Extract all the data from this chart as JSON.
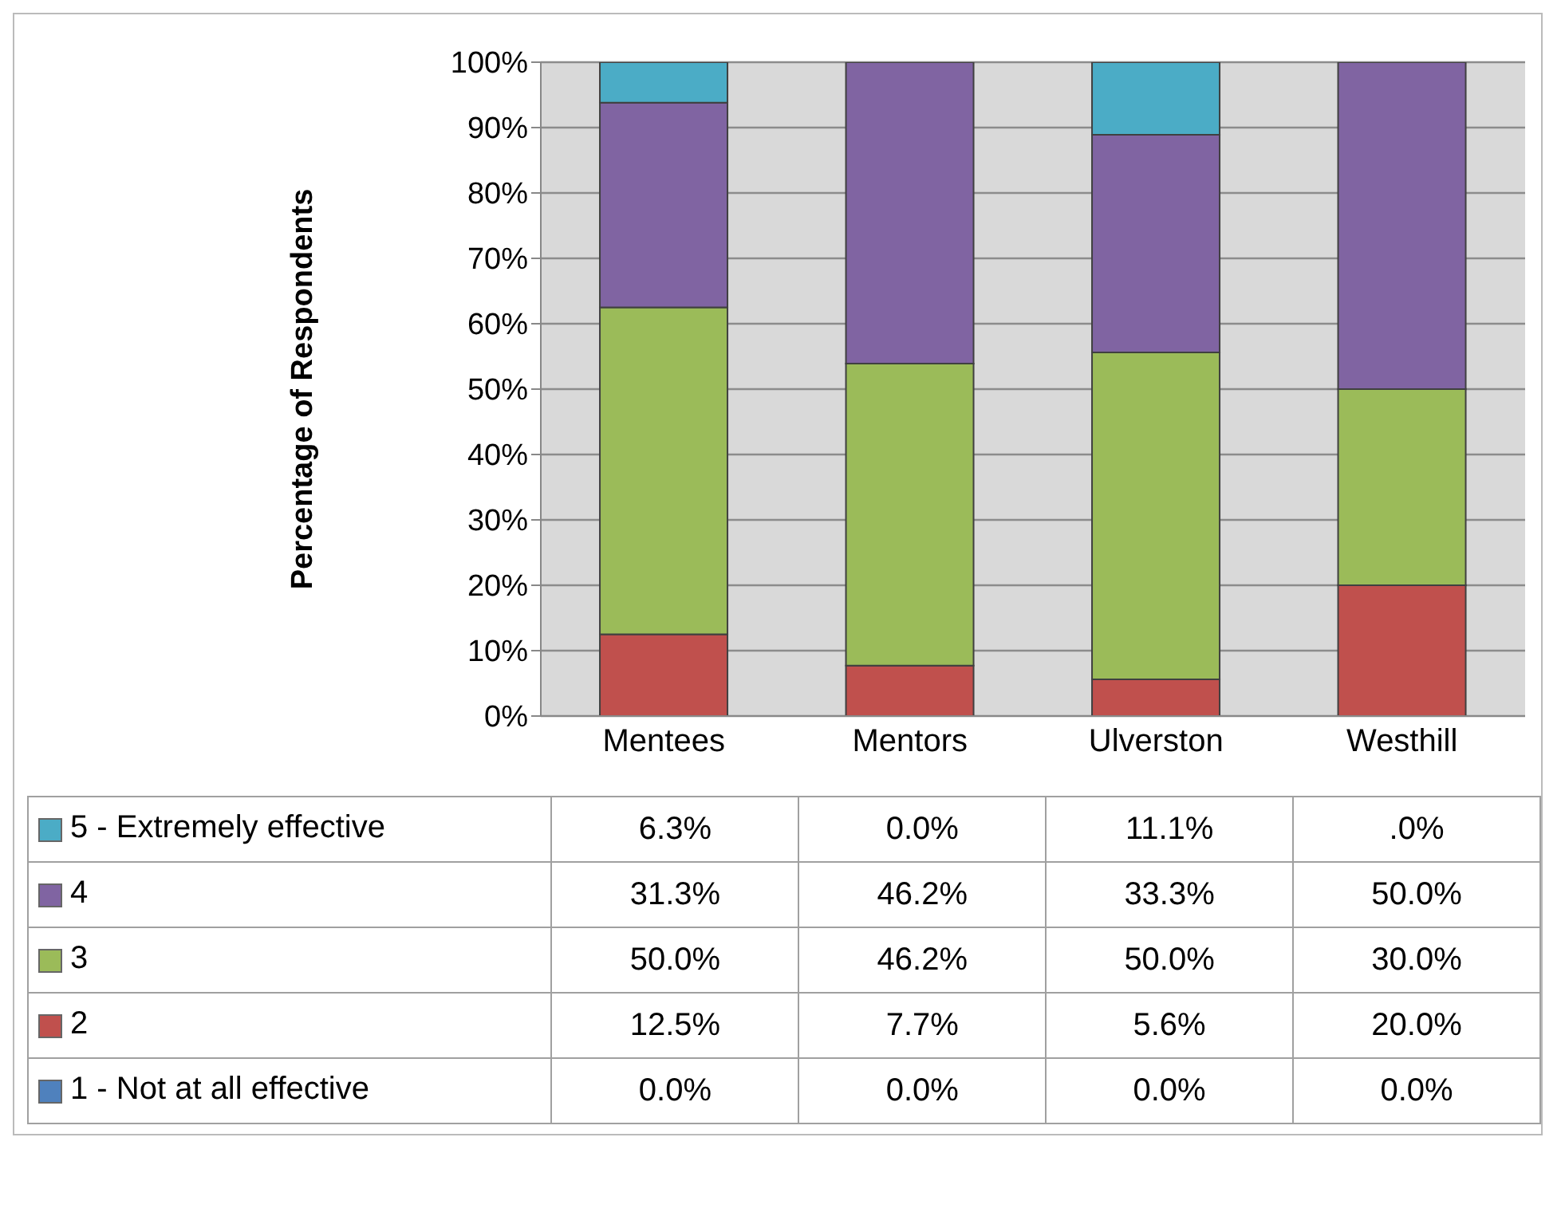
{
  "chart_data": {
    "type": "bar",
    "stacked": true,
    "ylabel": "Percentage of Respondents",
    "categories": [
      "Mentees",
      "Mentors",
      "Ulverston",
      "Westhill"
    ],
    "series": [
      {
        "name": "1 - Not at all effective",
        "color": "#4f81bd",
        "values": [
          0.0,
          0.0,
          0.0,
          0.0
        ],
        "value_labels": [
          "0.0%",
          "0.0%",
          "0.0%",
          "0.0%"
        ]
      },
      {
        "name": "2",
        "color": "#c0504d",
        "values": [
          12.5,
          7.7,
          5.6,
          20.0
        ],
        "value_labels": [
          "12.5%",
          "7.7%",
          "5.6%",
          "20.0%"
        ]
      },
      {
        "name": "3",
        "color": "#9bbb59",
        "values": [
          50.0,
          46.2,
          50.0,
          30.0
        ],
        "value_labels": [
          "50.0%",
          "46.2%",
          "50.0%",
          "30.0%"
        ]
      },
      {
        "name": "4",
        "color": "#8064a2",
        "values": [
          31.3,
          46.2,
          33.3,
          50.0
        ],
        "value_labels": [
          "31.3%",
          "46.2%",
          "33.3%",
          "50.0%"
        ]
      },
      {
        "name": "5 - Extremely effective",
        "color": "#4bacc6",
        "values": [
          6.3,
          0.0,
          11.1,
          0.0
        ],
        "value_labels": [
          "6.3%",
          "0.0%",
          "11.1%",
          ".0%"
        ]
      }
    ],
    "ylim": [
      0,
      100
    ],
    "yticks": [
      {
        "value": 0,
        "label": "0%"
      },
      {
        "value": 10,
        "label": "10%"
      },
      {
        "value": 20,
        "label": "20%"
      },
      {
        "value": 30,
        "label": "30%"
      },
      {
        "value": 40,
        "label": "40%"
      },
      {
        "value": 50,
        "label": "50%"
      },
      {
        "value": 60,
        "label": "60%"
      },
      {
        "value": 70,
        "label": "70%"
      },
      {
        "value": 80,
        "label": "80%"
      },
      {
        "value": 90,
        "label": "90%"
      },
      {
        "value": 100,
        "label": "100%"
      }
    ],
    "grid": "y",
    "legend": "bottom"
  }
}
